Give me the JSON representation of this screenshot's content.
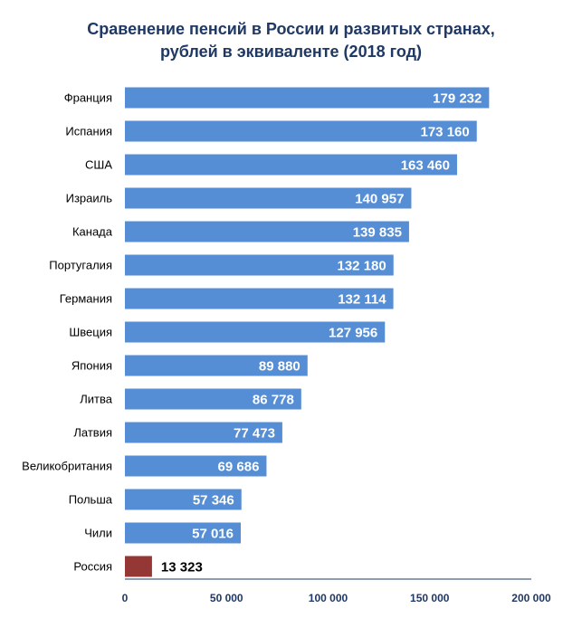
{
  "chart_data": {
    "type": "bar",
    "orientation": "horizontal",
    "title_lines": [
      "Сравенение пенсий в России и развитых странах,",
      "рублей в эквиваленте (2018 год)"
    ],
    "categories": [
      "Франция",
      "Испания",
      "США",
      "Израиль",
      "Канада",
      "Португалия",
      "Германия",
      "Швеция",
      "Япония",
      "Литва",
      "Латвия",
      "Великобритания",
      "Польша",
      "Чили",
      "Россия"
    ],
    "values": [
      179232,
      173160,
      163460,
      140957,
      139835,
      132180,
      132114,
      127956,
      89880,
      86778,
      77473,
      69686,
      57346,
      57016,
      13323
    ],
    "value_labels": [
      "179 232",
      "173 160",
      "163 460",
      "140 957",
      "139 835",
      "132 180",
      "132 114",
      "127 956",
      "89 880",
      "86 778",
      "77 473",
      "69 686",
      "57 346",
      "57 016",
      "13 323"
    ],
    "x_ticks": [
      0,
      50000,
      100000,
      150000,
      200000
    ],
    "x_tick_labels": [
      "0",
      "50 000",
      "100 000",
      "150 000",
      "200 000"
    ],
    "xlim": [
      0,
      200000
    ],
    "grid": false,
    "legend": "none",
    "colors": {
      "bar": "#558ed5",
      "highlight_bar": "#953735",
      "highlight_category": "Россия",
      "title": "#1f3864",
      "tick_labels": "#1f3864",
      "category_labels": "#000000",
      "value_label_inside": "#ffffff",
      "value_label_outside": "#000000",
      "axis": "#1f3864"
    }
  }
}
